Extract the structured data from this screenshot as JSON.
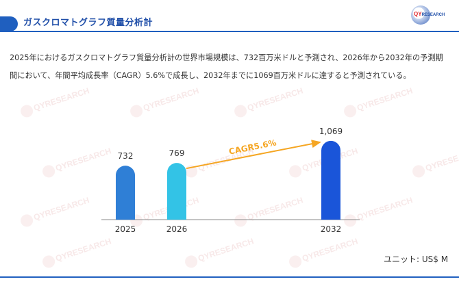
{
  "header": {
    "title": "ガスクロマトグラフ質量分析計",
    "logo_text": "QY",
    "logo_sub": "RESEARCH"
  },
  "description": {
    "line1": "2025年におけるガスクロマトグラフ質量分析計の世界市場規模は、732百万米ドルと予測され、2026年から2032年の予測期",
    "line2": "間において、年間平均成長率（CAGR）5.6%で成長し、2032年までに1069百万米ドルに達すると予測されている。"
  },
  "watermark_text": "QYRESEARCH",
  "unit_label": "ユニット: US$ M",
  "chart_data": {
    "type": "bar",
    "categories": [
      "2025",
      "2026",
      "2032"
    ],
    "values": [
      732,
      769,
      1069
    ],
    "value_labels": [
      "732",
      "769",
      "1,069"
    ],
    "colors": [
      "#2f7fd6",
      "#33c3e6",
      "#1a55d9"
    ],
    "annotation": {
      "text": "CAGR5.6%",
      "from": "2026",
      "to": "2032",
      "color": "#f5a623"
    },
    "title": "",
    "xlabel": "",
    "ylabel": "",
    "grid": false,
    "legend": "none"
  }
}
